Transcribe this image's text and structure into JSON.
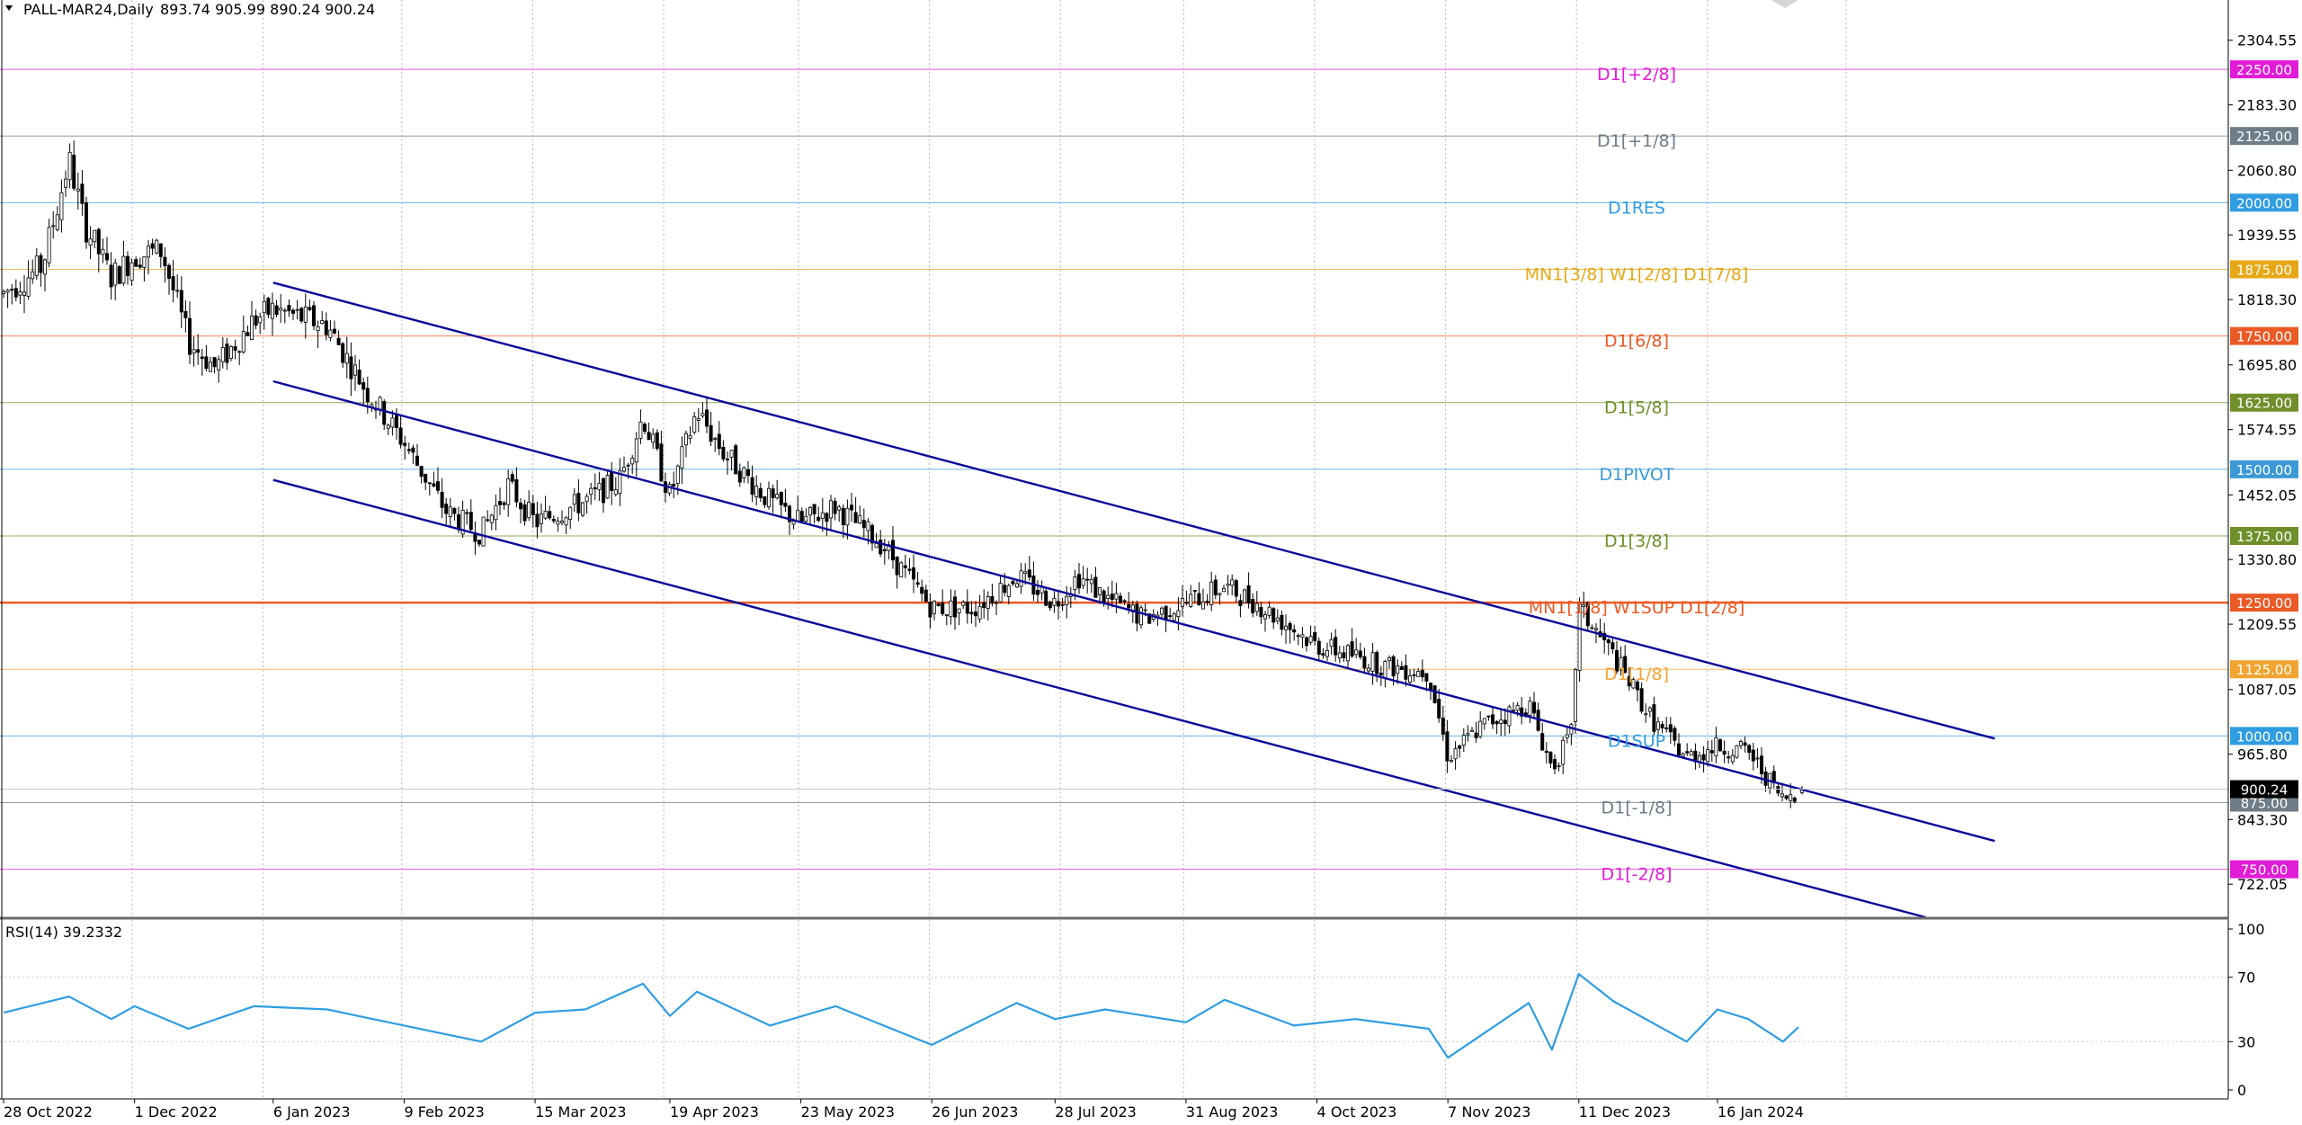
{
  "window": {
    "symbol_header": "PALL-MAR24,Daily",
    "ohlc": "893.74 905.99 890.24 900.24",
    "current_price": "900.24"
  },
  "price_axis": {
    "ticks": [
      "2304.55",
      "2183.30",
      "2060.80",
      "1939.55",
      "1818.30",
      "1695.80",
      "1574.55",
      "1452.05",
      "1330.80",
      "1209.55",
      "1087.05",
      "965.80",
      "843.30",
      "722.05"
    ]
  },
  "levels": [
    {
      "price": 2250,
      "label": "D1[+2/8]",
      "tag": "2250.00",
      "color": "#e11cd6"
    },
    {
      "price": 2125,
      "label": "D1[+1/8]",
      "tag": "2125.00",
      "color": "#6e7d87"
    },
    {
      "price": 2000,
      "label": "D1RES",
      "tag": "2000.00",
      "color": "#2f9de0"
    },
    {
      "price": 1875,
      "label": "MN1[3/8] W1[2/8] D1[7/8]",
      "tag": "1875.00",
      "color": "#e6a817"
    },
    {
      "price": 1750,
      "label": "D1[6/8]",
      "tag": "1750.00",
      "color": "#ea5a26"
    },
    {
      "price": 1625,
      "label": "D1[5/8]",
      "tag": "1625.00",
      "color": "#6f8f2a"
    },
    {
      "price": 1500,
      "label": "D1PIVOT",
      "tag": "1500.00",
      "color": "#3b9ad6"
    },
    {
      "price": 1375,
      "label": "D1[3/8]",
      "tag": "1375.00",
      "color": "#6f8f2a"
    },
    {
      "price": 1250,
      "label": "MN1[1/8] W1SUP D1[2/8]",
      "tag": "1250.00",
      "color": "#ea5a26"
    },
    {
      "price": 1125,
      "label": "D1[1/8]",
      "tag": "1125.00",
      "color": "#f0a431"
    },
    {
      "price": 1000,
      "label": "D1SUP",
      "tag": "1000.00",
      "color": "#2f9de0"
    },
    {
      "price": 875,
      "label": "D1[-1/8]",
      "tag": "875.00",
      "color": "#6e7d87"
    },
    {
      "price": 750,
      "label": "D1[-2/8]",
      "tag": "750.00",
      "color": "#e11cd6"
    }
  ],
  "dates": [
    "28 Oct 2022",
    "1 Dec 2022",
    "6 Jan 2023",
    "9 Feb 2023",
    "15 Mar 2023",
    "19 Apr 2023",
    "23 May 2023",
    "26 Jun 2023",
    "28 Jul 2023",
    "31 Aug 2023",
    "4 Oct 2023",
    "7 Nov 2023",
    "11 Dec 2023",
    "16 Jan 2024"
  ],
  "rsi": {
    "title": "RSI(14) 39.2332",
    "ticks": [
      "100",
      "70",
      "30",
      "0"
    ]
  },
  "chart_data": {
    "type": "candlestick",
    "symbol": "PALL-MAR24",
    "timeframe": "Daily",
    "last": {
      "open": 893.74,
      "high": 905.99,
      "low": 890.24,
      "close": 900.24
    },
    "price_range": [
      660,
      2360
    ],
    "x_range": [
      "28 Oct 2022",
      "16 Jan 2024"
    ],
    "path": [
      [
        "28 Oct 2022",
        1830
      ],
      [
        "7 Nov 2022",
        1880
      ],
      [
        "14 Nov 2022",
        2080
      ],
      [
        "18 Nov 2022",
        1960
      ],
      [
        "25 Nov 2022",
        1860
      ],
      [
        "1 Dec 2022",
        1900
      ],
      [
        "8 Dec 2022",
        1910
      ],
      [
        "15 Dec 2022",
        1740
      ],
      [
        "22 Dec 2022",
        1690
      ],
      [
        "1 Jan 2023",
        1780
      ],
      [
        "6 Jan 2023",
        1800
      ],
      [
        "20 Jan 2023",
        1770
      ],
      [
        "30 Jan 2023",
        1650
      ],
      [
        "9 Feb 2023",
        1550
      ],
      [
        "20 Feb 2023",
        1420
      ],
      [
        "1 Mar 2023",
        1380
      ],
      [
        "8 Mar 2023",
        1470
      ],
      [
        "15 Mar 2023",
        1400
      ],
      [
        "28 Mar 2023",
        1440
      ],
      [
        "6 Apr 2023",
        1480
      ],
      [
        "12 Apr 2023",
        1600
      ],
      [
        "19 Apr 2023",
        1450
      ],
      [
        "26 Apr 2023",
        1610
      ],
      [
        "3 May 2023",
        1530
      ],
      [
        "15 May 2023",
        1440
      ],
      [
        "23 May 2023",
        1400
      ],
      [
        "1 Jun 2023",
        1430
      ],
      [
        "13 Jun 2023",
        1360
      ],
      [
        "26 Jun 2023",
        1240
      ],
      [
        "7 Jul 2023",
        1240
      ],
      [
        "18 Jul 2023",
        1300
      ],
      [
        "28 Jul 2023",
        1250
      ],
      [
        "3 Aug 2023",
        1300
      ],
      [
        "10 Aug 2023",
        1260
      ],
      [
        "20 Aug 2023",
        1220
      ],
      [
        "31 Aug 2023",
        1250
      ],
      [
        "10 Sep 2023",
        1280
      ],
      [
        "18 Sep 2023",
        1250
      ],
      [
        "28 Sep 2023",
        1200
      ],
      [
        "4 Oct 2023",
        1170
      ],
      [
        "14 Oct 2023",
        1150
      ],
      [
        "22 Oct 2023",
        1130
      ],
      [
        "2 Nov 2023",
        1120
      ],
      [
        "7 Nov 2023",
        960
      ],
      [
        "16 Nov 2023",
        1020
      ],
      [
        "28 Nov 2023",
        1060
      ],
      [
        "4 Dec 2023",
        940
      ],
      [
        "9 Dec 2023",
        1000
      ],
      [
        "11 Dec 2023",
        1240
      ],
      [
        "20 Dec 2023",
        1150
      ],
      [
        "30 Dec 2023",
        1030
      ],
      [
        "8 Jan 2024",
        960
      ],
      [
        "16 Jan 2024",
        980
      ],
      [
        "24 Jan 2024",
        970
      ],
      [
        "2 Feb 2024",
        880
      ],
      [
        "6 Feb 2024",
        900
      ]
    ],
    "channel": [
      {
        "from": [
          "6 Jan 2023",
          1850
        ],
        "to": [
          "28 Mar 2024",
          995
        ]
      },
      {
        "from": [
          "6 Jan 2023",
          1665
        ],
        "to": [
          "28 Mar 2024",
          803
        ]
      },
      {
        "from": [
          "6 Jan 2023",
          1480
        ],
        "to": [
          "10 Mar 2024",
          660
        ]
      }
    ],
    "rsi_path": [
      [
        "28 Oct 2022",
        48
      ],
      [
        "14 Nov 2022",
        58
      ],
      [
        "25 Nov 2022",
        44
      ],
      [
        "1 Dec 2022",
        52
      ],
      [
        "15 Dec 2022",
        38
      ],
      [
        "1 Jan 2023",
        52
      ],
      [
        "20 Jan 2023",
        50
      ],
      [
        "9 Feb 2023",
        40
      ],
      [
        "1 Mar 2023",
        30
      ],
      [
        "15 Mar 2023",
        48
      ],
      [
        "28 Mar 2023",
        50
      ],
      [
        "12 Apr 2023",
        66
      ],
      [
        "19 Apr 2023",
        46
      ],
      [
        "26 Apr 2023",
        61
      ],
      [
        "15 May 2023",
        40
      ],
      [
        "1 Jun 2023",
        52
      ],
      [
        "26 Jun 2023",
        28
      ],
      [
        "18 Jul 2023",
        54
      ],
      [
        "28 Jul 2023",
        44
      ],
      [
        "10 Aug 2023",
        50
      ],
      [
        "31 Aug 2023",
        42
      ],
      [
        "10 Sep 2023",
        56
      ],
      [
        "28 Sep 2023",
        40
      ],
      [
        "14 Oct 2023",
        44
      ],
      [
        "2 Nov 2023",
        38
      ],
      [
        "7 Nov 2023",
        20
      ],
      [
        "28 Nov 2023",
        54
      ],
      [
        "4 Dec 2023",
        25
      ],
      [
        "11 Dec 2023",
        72
      ],
      [
        "20 Dec 2023",
        55
      ],
      [
        "8 Jan 2024",
        30
      ],
      [
        "16 Jan 2024",
        50
      ],
      [
        "24 Jan 2024",
        44
      ],
      [
        "2 Feb 2024",
        30
      ],
      [
        "6 Feb 2024",
        39
      ]
    ]
  }
}
